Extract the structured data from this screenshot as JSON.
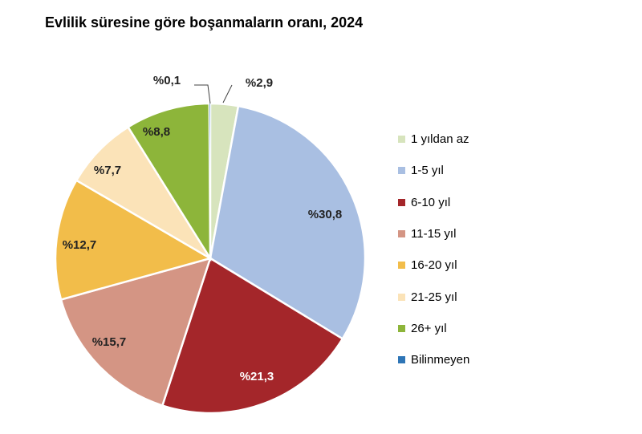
{
  "chart_data": {
    "type": "pie",
    "title": "Evlilik süresine göre boşanmaların oranı, 2024",
    "legend_position": "right",
    "slices": [
      {
        "label": "1 yıldan az",
        "value": 2.9,
        "display": "%2,9",
        "color": "#d7e4bd"
      },
      {
        "label": "1-5 yıl",
        "value": 30.8,
        "display": "%30,8",
        "color": "#a9bfe2"
      },
      {
        "label": "6-10 yıl",
        "value": 21.3,
        "display": "%21,3",
        "color": "#a4262a"
      },
      {
        "label": "11-15 yıl",
        "value": 15.7,
        "display": "%15,7",
        "color": "#d49584"
      },
      {
        "label": "16-20 yıl",
        "value": 12.7,
        "display": "%12,7",
        "color": "#f2bd4a"
      },
      {
        "label": "21-25 yıl",
        "value": 7.7,
        "display": "%7,7",
        "color": "#fbe3b8"
      },
      {
        "label": "26+ yıl",
        "value": 8.8,
        "display": "%8,8",
        "color": "#8db53a"
      },
      {
        "label": "Bilinmeyen",
        "value": 0.1,
        "display": "%0,1",
        "color": "#2e75b6"
      }
    ]
  }
}
